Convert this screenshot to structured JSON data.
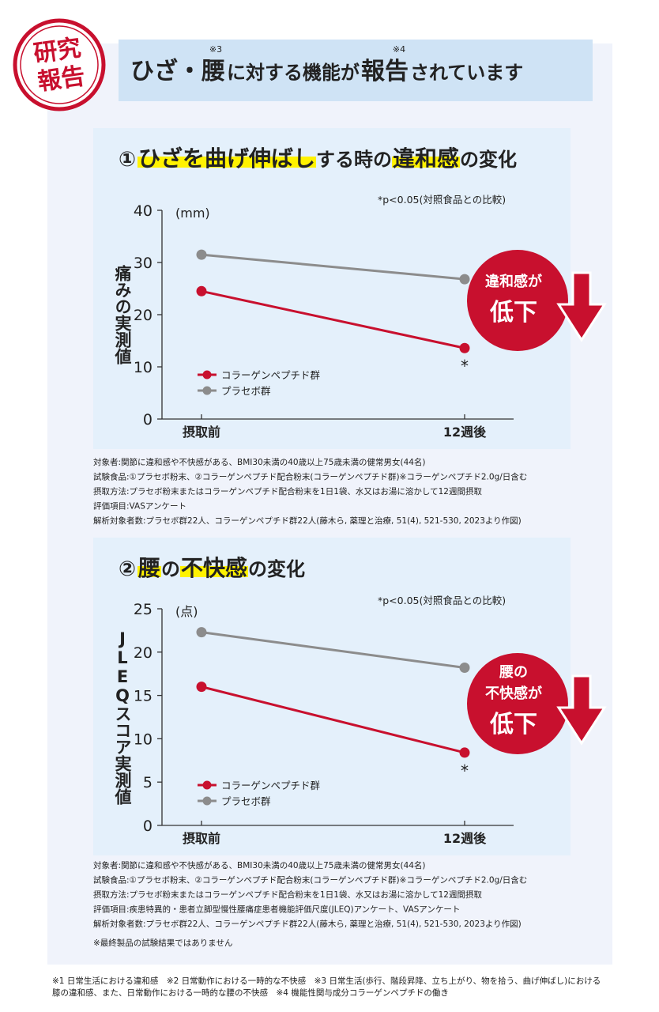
{
  "header": {
    "stamp": [
      "研究",
      "報告"
    ],
    "title": [
      {
        "text": "ひざ・腰",
        "emphasis": true,
        "note": "※3"
      },
      {
        "text": "に対する機能が",
        "emphasis": false
      },
      {
        "text": "報告",
        "emphasis": true,
        "note": "※4"
      },
      {
        "text": "されています",
        "emphasis": false
      }
    ]
  },
  "chart_data": [
    {
      "type": "line",
      "number": "①",
      "title": [
        {
          "text": "ひざを曲げ伸ばし",
          "highlight": true
        },
        {
          "text": "する時の",
          "highlight": false
        },
        {
          "text": "違和感",
          "highlight": true
        },
        {
          "text": "の変化",
          "highlight": false
        }
      ],
      "note": "*p<0.05(対照食品との比較)",
      "y_label": "痛みの実測値",
      "y_unit": "(mm)",
      "categories": [
        "摂取前",
        "12週後"
      ],
      "series": [
        {
          "name": "コラーゲンペプチド群",
          "color": "#c8102e",
          "values": [
            24.5,
            13.6
          ],
          "significance": [
            null,
            "*"
          ]
        },
        {
          "name": "プラセボ群",
          "color": "#8c8c8c",
          "values": [
            31.5,
            26.8
          ],
          "significance": [
            null,
            null
          ]
        }
      ],
      "ylim": [
        0,
        40
      ],
      "yticks": [
        0,
        10,
        20,
        30,
        40
      ],
      "legend": "lower left",
      "callout": [
        "違和感が",
        "低下"
      ],
      "footnotes": [
        "対象者:関節に違和感や不快感がある、BMI30未満の40歳以上75歳未満の健常男女(44名)",
        "試験食品:①プラセボ粉末、②コラーゲンペプチド配合粉末(コラーゲンペプチド群)※コラーゲンペプチド2.0g/日含む",
        "摂取方法:プラセボ粉末またはコラーゲンペプチド配合粉末を1日1袋、水又はお湯に溶かして12週間摂取",
        "評価項目:VASアンケート",
        "解析対象者数:プラセボ群22人、コラーゲンペプチド群22人(藤木ら, 薬理と治療, 51(4), 521-530, 2023より作図)"
      ]
    },
    {
      "type": "line",
      "number": "②",
      "title": [
        {
          "text": "腰",
          "highlight": true
        },
        {
          "text": "の",
          "highlight": false
        },
        {
          "text": "不快感",
          "highlight": true
        },
        {
          "text": "の変化",
          "highlight": false
        }
      ],
      "note": "*p<0.05(対照食品との比較)",
      "y_label": "JLEQスコア実測値",
      "y_unit": "(点)",
      "categories": [
        "摂取前",
        "12週後"
      ],
      "series": [
        {
          "name": "コラーゲンペプチド群",
          "color": "#c8102e",
          "values": [
            16.0,
            8.4
          ],
          "significance": [
            null,
            "*"
          ]
        },
        {
          "name": "プラセボ群",
          "color": "#8c8c8c",
          "values": [
            22.3,
            18.2
          ],
          "significance": [
            null,
            null
          ]
        }
      ],
      "ylim": [
        0,
        25
      ],
      "yticks": [
        0,
        5,
        10,
        15,
        20,
        25
      ],
      "legend": "lower left",
      "callout": [
        "腰の",
        "不快感が",
        "低下"
      ],
      "footnotes": [
        "対象者:関節に違和感や不快感がある、BMI30未満の40歳以上75歳未満の健常男女(44名)",
        "試験食品:①プラセボ粉末、②コラーゲンペプチド配合粉末(コラーゲンペプチド群)※コラーゲンペプチド2.0g/日含む",
        "摂取方法:プラセボ粉末またはコラーゲンペプチド配合粉末を1日1袋、水又はお湯に溶かして12週間摂取",
        "評価項目:疾患特異的・患者立脚型慢性腰痛症患者機能評価尺度(JLEQ)アンケート、VASアンケート",
        "解析対象者数:プラセボ群22人、コラーゲンペプチド群22人(藤木ら, 薬理と治療, 51(4), 521-530, 2023より作図)"
      ]
    }
  ],
  "disclaimer": "※最終製品の試験結果ではありません",
  "footnotes": [
    "※1 日常生活における違和感　※2 日常動作における一時的な不快感　※3 日常生活(歩行、階段昇降、立ち上がり、物を拾う、曲げ伸ばし)における",
    "膝の違和感、また、日常動作における一時的な腰の不快感　※4 機能性関与成分コラーゲンペプチドの働き"
  ]
}
